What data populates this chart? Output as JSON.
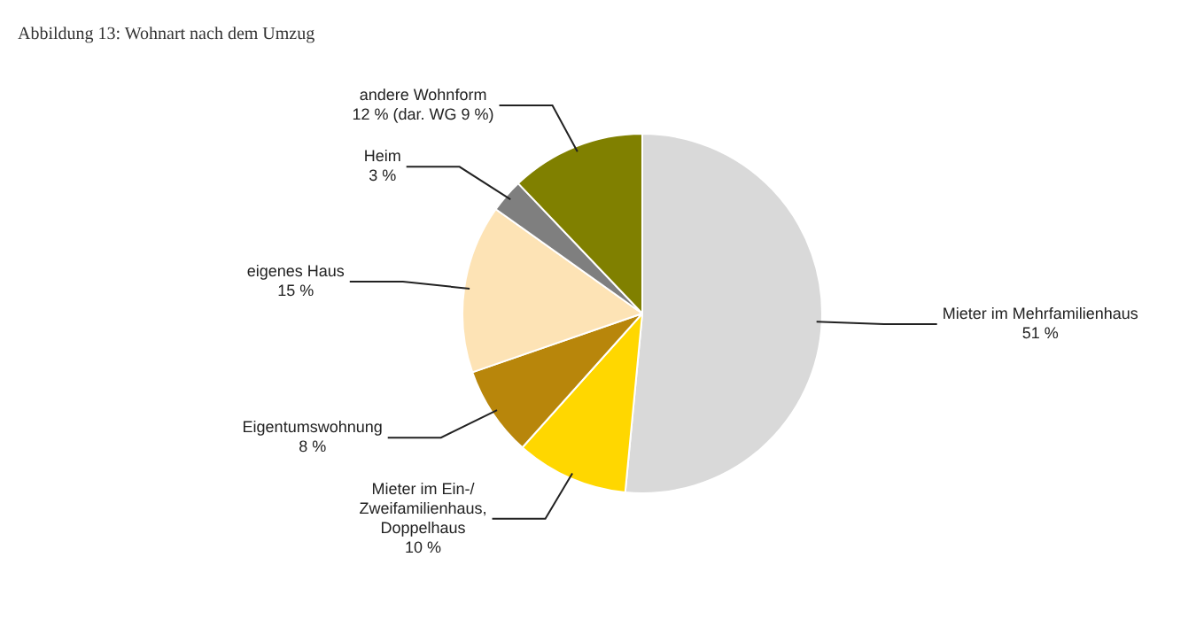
{
  "chart_data": {
    "type": "pie",
    "title": "Abbildung 13: Wohnart nach dem Umzug",
    "categories": [
      "Mieter im Mehrfamilienhaus",
      "Mieter im Ein-/Zweifamilienhaus, Doppelhaus",
      "Eigentumswohnung",
      "eigenes Haus",
      "Heim",
      "andere Wohnform"
    ],
    "values": [
      51,
      10,
      8,
      15,
      3,
      12
    ],
    "value_labels": [
      "51 %",
      "10 %",
      "8 %",
      "15 %",
      "3 %",
      "12 % (dar. WG 9 %)"
    ],
    "colors": [
      "#d9d9d9",
      "#ffd700",
      "#b8860b",
      "#fde3b5",
      "#7f7f7f",
      "#808000"
    ],
    "legend": false
  }
}
